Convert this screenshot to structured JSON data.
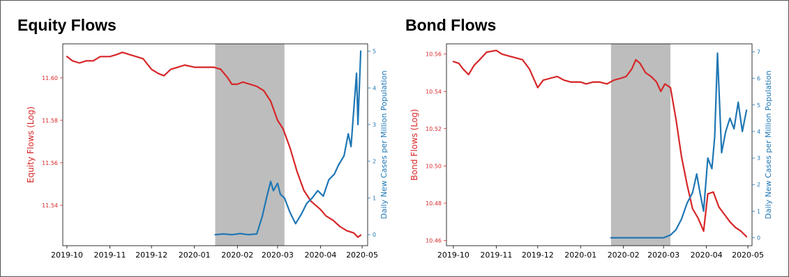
{
  "colors": {
    "flows": "#d62728",
    "cases": "#1f77b4",
    "shade": "#bdbdbd"
  },
  "chart_data": [
    {
      "type": "line",
      "title": "Equity Flows",
      "ylabel": "Equity Flows (Log)",
      "y2label": "Daily New Cases per Million Population",
      "xticks": [
        "2019-10",
        "2019-11",
        "2019-12",
        "2020-01",
        "2020-02",
        "2020-03",
        "2020-04",
        "2020-05"
      ],
      "xlim": [
        "2019-09-28",
        "2020-05-05"
      ],
      "ylim": [
        11.521,
        11.616
      ],
      "yticks": [
        "11.54",
        "11.56",
        "11.58",
        "11.60"
      ],
      "y2lim": [
        -0.3,
        5.2
      ],
      "y2ticks": [
        "0",
        "1",
        "2",
        "3",
        "4",
        "5"
      ],
      "shaded_region": [
        "2020-01-16",
        "2020-03-06"
      ],
      "series": [
        {
          "axis": "left",
          "x": [
            "2019-10-01",
            "2019-10-05",
            "2019-10-10",
            "2019-10-15",
            "2019-10-20",
            "2019-10-25",
            "2019-11-01",
            "2019-11-06",
            "2019-11-10",
            "2019-11-15",
            "2019-11-20",
            "2019-11-25",
            "2019-12-01",
            "2019-12-06",
            "2019-12-10",
            "2019-12-15",
            "2019-12-20",
            "2019-12-25",
            "2020-01-01",
            "2020-01-05",
            "2020-01-10",
            "2020-01-15",
            "2020-01-20",
            "2020-01-25",
            "2020-01-28",
            "2020-02-01",
            "2020-02-05",
            "2020-02-10",
            "2020-02-15",
            "2020-02-20",
            "2020-02-25",
            "2020-03-01",
            "2020-03-05",
            "2020-03-10",
            "2020-03-15",
            "2020-03-20",
            "2020-03-25",
            "2020-04-01",
            "2020-04-05",
            "2020-04-10",
            "2020-04-15",
            "2020-04-20",
            "2020-04-25",
            "2020-04-28",
            "2020-04-30"
          ],
          "values": [
            11.61,
            11.608,
            11.607,
            11.608,
            11.608,
            11.61,
            11.61,
            11.611,
            11.612,
            11.611,
            11.61,
            11.609,
            11.604,
            11.602,
            11.601,
            11.604,
            11.605,
            11.606,
            11.605,
            11.605,
            11.605,
            11.605,
            11.604,
            11.6,
            11.597,
            11.597,
            11.598,
            11.597,
            11.596,
            11.594,
            11.589,
            11.58,
            11.576,
            11.567,
            11.556,
            11.547,
            11.542,
            11.538,
            11.535,
            11.533,
            11.53,
            11.528,
            11.527,
            11.525,
            11.526
          ]
        },
        {
          "axis": "right",
          "x": [
            "2020-01-16",
            "2020-01-22",
            "2020-01-28",
            "2020-02-03",
            "2020-02-09",
            "2020-02-15",
            "2020-02-19",
            "2020-02-22",
            "2020-02-25",
            "2020-02-27",
            "2020-03-01",
            "2020-03-03",
            "2020-03-06",
            "2020-03-10",
            "2020-03-14",
            "2020-03-18",
            "2020-03-22",
            "2020-03-26",
            "2020-03-30",
            "2020-04-03",
            "2020-04-07",
            "2020-04-11",
            "2020-04-14",
            "2020-04-18",
            "2020-04-21",
            "2020-04-23",
            "2020-04-25",
            "2020-04-27",
            "2020-04-28",
            "2020-04-30"
          ],
          "values": [
            0.0,
            0.02,
            0.0,
            0.03,
            0.0,
            0.02,
            0.5,
            1.0,
            1.45,
            1.2,
            1.4,
            1.1,
            1.0,
            0.6,
            0.3,
            0.55,
            0.85,
            1.0,
            1.2,
            1.05,
            1.5,
            1.65,
            1.9,
            2.15,
            2.75,
            2.4,
            3.4,
            4.4,
            3.0,
            5.0
          ]
        }
      ]
    },
    {
      "type": "line",
      "title": "Bond Flows",
      "ylabel": "Bond Flows (Log)",
      "y2label": "Daily New Cases per Million Population",
      "xticks": [
        "2019-10",
        "2019-11",
        "2019-12",
        "2020-01",
        "2020-02",
        "2020-03",
        "2020-04",
        "2020-05"
      ],
      "xlim": [
        "2019-09-26",
        "2020-05-04"
      ],
      "ylim": [
        10.4572,
        10.5655
      ],
      "yticks": [
        "10.46",
        "10.48",
        "10.50",
        "10.52",
        "10.54",
        "10.56"
      ],
      "y2lim": [
        -0.3,
        7.3
      ],
      "y2ticks": [
        "0",
        "1",
        "2",
        "3",
        "4",
        "5",
        "6",
        "7"
      ],
      "shaded_region": [
        "2020-01-23",
        "2020-03-06"
      ],
      "series": [
        {
          "axis": "left",
          "x": [
            "2019-10-01",
            "2019-10-05",
            "2019-10-08",
            "2019-10-12",
            "2019-10-16",
            "2019-10-20",
            "2019-10-25",
            "2019-11-01",
            "2019-11-05",
            "2019-11-10",
            "2019-11-15",
            "2019-11-20",
            "2019-11-25",
            "2019-12-01",
            "2019-12-05",
            "2019-12-10",
            "2019-12-15",
            "2019-12-20",
            "2019-12-25",
            "2020-01-01",
            "2020-01-05",
            "2020-01-10",
            "2020-01-15",
            "2020-01-20",
            "2020-01-25",
            "2020-01-30",
            "2020-02-03",
            "2020-02-07",
            "2020-02-10",
            "2020-02-13",
            "2020-02-17",
            "2020-02-21",
            "2020-02-25",
            "2020-02-28",
            "2020-03-02",
            "2020-03-06",
            "2020-03-10",
            "2020-03-14",
            "2020-03-18",
            "2020-03-22",
            "2020-03-26",
            "2020-03-30",
            "2020-04-02",
            "2020-04-06",
            "2020-04-10",
            "2020-04-14",
            "2020-04-18",
            "2020-04-22",
            "2020-04-26",
            "2020-04-30"
          ],
          "values": [
            10.556,
            10.555,
            10.552,
            10.549,
            10.554,
            10.557,
            10.561,
            10.562,
            10.56,
            10.559,
            10.558,
            10.557,
            10.552,
            10.542,
            10.546,
            10.547,
            10.548,
            10.546,
            10.545,
            10.545,
            10.544,
            10.545,
            10.545,
            10.544,
            10.546,
            10.547,
            10.548,
            10.552,
            10.557,
            10.555,
            10.55,
            10.548,
            10.545,
            10.54,
            10.544,
            10.542,
            10.525,
            10.505,
            10.49,
            10.477,
            10.472,
            10.465,
            10.485,
            10.486,
            10.478,
            10.474,
            10.47,
            10.467,
            10.465,
            10.462
          ]
        },
        {
          "axis": "right",
          "x": [
            "2020-01-23",
            "2020-02-10",
            "2020-03-01",
            "2020-03-06",
            "2020-03-10",
            "2020-03-14",
            "2020-03-18",
            "2020-03-22",
            "2020-03-25",
            "2020-03-27",
            "2020-03-30",
            "2020-04-02",
            "2020-04-05",
            "2020-04-07",
            "2020-04-09",
            "2020-04-12",
            "2020-04-15",
            "2020-04-18",
            "2020-04-21",
            "2020-04-24",
            "2020-04-27",
            "2020-04-30"
          ],
          "values": [
            0.0,
            0.0,
            0.0,
            0.1,
            0.3,
            0.7,
            1.3,
            1.7,
            2.4,
            1.8,
            1.0,
            3.0,
            2.6,
            3.8,
            6.95,
            3.2,
            4.0,
            4.5,
            4.1,
            5.1,
            4.0,
            4.8
          ]
        }
      ]
    }
  ]
}
